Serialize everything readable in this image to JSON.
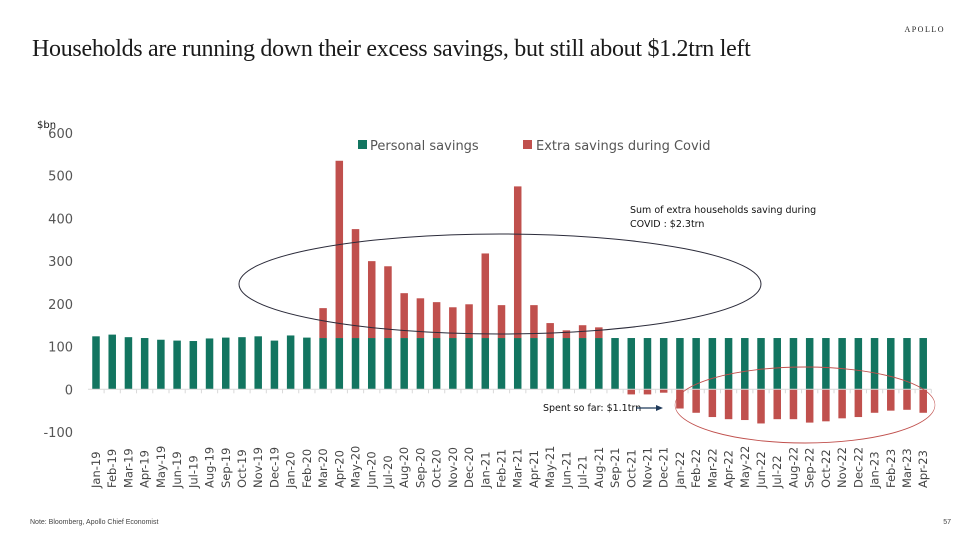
{
  "header": {
    "brand": "APOLLO",
    "title": "Households are running down their excess savings, but still about $1.2trn left"
  },
  "footer": {
    "note": "Note: Bloomberg, Apollo Chief Economist",
    "page_number": "57"
  },
  "colors": {
    "personal_savings": "#127560",
    "extra_savings": "#c0504d",
    "ellipse_top": "#2b2b3a",
    "ellipse_bottom": "#c0504d"
  },
  "chart_data": {
    "type": "bar",
    "stacked": true,
    "title": "Households are running down their excess savings, but still about $1.2trn left",
    "xlabel": "",
    "ylabel": "$bn",
    "ylim": [
      -100,
      600
    ],
    "yticks": [
      600,
      500,
      400,
      300,
      200,
      100,
      0,
      -100
    ],
    "grid": false,
    "legend_position": "top-center",
    "categories": [
      "Jan-19",
      "Feb-19",
      "Mar-19",
      "Apr-19",
      "May-19",
      "Jun-19",
      "Jul-19",
      "Aug-19",
      "Sep-19",
      "Oct-19",
      "Nov-19",
      "Dec-19",
      "Jan-20",
      "Feb-20",
      "Mar-20",
      "Apr-20",
      "May-20",
      "Jun-20",
      "Jul-20",
      "Aug-20",
      "Sep-20",
      "Oct-20",
      "Nov-20",
      "Dec-20",
      "Jan-21",
      "Feb-21",
      "Mar-21",
      "Apr-21",
      "May-21",
      "Jun-21",
      "Jul-21",
      "Aug-21",
      "Sep-21",
      "Oct-21",
      "Nov-21",
      "Dec-21",
      "Jan-22",
      "Feb-22",
      "Mar-22",
      "Apr-22",
      "May-22",
      "Jun-22",
      "Jul-22",
      "Aug-22",
      "Sep-22",
      "Oct-22",
      "Nov-22",
      "Dec-22",
      "Jan-23",
      "Feb-23",
      "Mar-23",
      "Apr-23"
    ],
    "series": [
      {
        "name": "Personal savings",
        "values": [
          124,
          128,
          122,
          120,
          116,
          114,
          113,
          119,
          121,
          122,
          124,
          114,
          126,
          121,
          120,
          120,
          120,
          120,
          120,
          120,
          120,
          120,
          120,
          120,
          120,
          120,
          120,
          120,
          120,
          120,
          120,
          120,
          120,
          120,
          120,
          120,
          120,
          120,
          120,
          120,
          120,
          120,
          120,
          120,
          120,
          120,
          120,
          120,
          120,
          120,
          120,
          120
        ]
      },
      {
        "name": "Extra savings during Covid",
        "values": [
          0,
          0,
          0,
          0,
          0,
          0,
          0,
          0,
          0,
          0,
          0,
          0,
          0,
          0,
          70,
          415,
          255,
          180,
          168,
          105,
          93,
          84,
          72,
          79,
          198,
          77,
          355,
          77,
          35,
          18,
          30,
          25,
          0,
          -12,
          -12,
          -8,
          -45,
          -55,
          -65,
          -70,
          -72,
          -80,
          -70,
          -70,
          -78,
          -75,
          -68,
          -65,
          -55,
          -50,
          -48,
          -55
        ]
      }
    ],
    "annotations": [
      {
        "text_line1": "Sum of extra households saving during",
        "text_line2": "COVID : $2.3trn",
        "shape": "ellipse",
        "encircles": "Mar-20 to Aug-21"
      },
      {
        "text": "Spent so far: $1.1trn",
        "shape": "arrow+ellipse",
        "encircles": "Jan-22 to Apr-23"
      }
    ]
  }
}
